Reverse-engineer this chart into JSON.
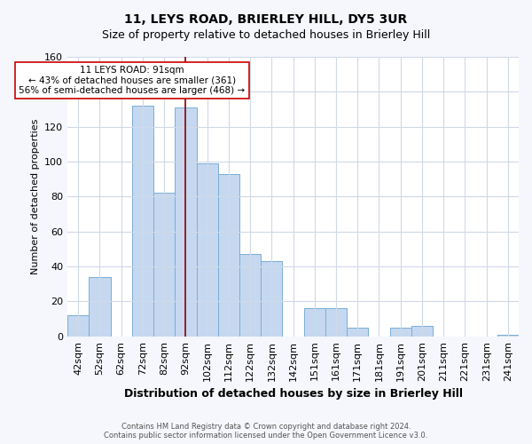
{
  "title": "11, LEYS ROAD, BRIERLEY HILL, DY5 3UR",
  "subtitle": "Size of property relative to detached houses in Brierley Hill",
  "xlabel": "Distribution of detached houses by size in Brierley Hill",
  "ylabel": "Number of detached properties",
  "bar_labels": [
    "42sqm",
    "52sqm",
    "62sqm",
    "72sqm",
    "82sqm",
    "92sqm",
    "102sqm",
    "112sqm",
    "122sqm",
    "132sqm",
    "142sqm",
    "151sqm",
    "161sqm",
    "171sqm",
    "181sqm",
    "191sqm",
    "201sqm",
    "211sqm",
    "221sqm",
    "231sqm",
    "241sqm"
  ],
  "bar_heights": [
    12,
    34,
    0,
    132,
    82,
    131,
    99,
    93,
    47,
    43,
    0,
    16,
    16,
    5,
    0,
    5,
    6,
    0,
    0,
    0,
    1
  ],
  "bar_color": "#c5d8f0",
  "bar_edge_color": "#7aaed4",
  "vline_x_idx": 5,
  "vline_color": "#8b0000",
  "annotation_text": "11 LEYS ROAD: 91sqm\n← 43% of detached houses are smaller (361)\n56% of semi-detached houses are larger (468) →",
  "annotation_box_color": "#ffffff",
  "annotation_box_edge_color": "#cc0000",
  "ylim": [
    0,
    160
  ],
  "yticks": [
    0,
    20,
    40,
    60,
    80,
    100,
    120,
    140,
    160
  ],
  "footer1": "Contains HM Land Registry data © Crown copyright and database right 2024.",
  "footer2": "Contains public sector information licensed under the Open Government Licence v3.0.",
  "fig_bg_color": "#f5f7fc",
  "plot_bg_color": "#ffffff",
  "grid_color": "#d0d9e8"
}
